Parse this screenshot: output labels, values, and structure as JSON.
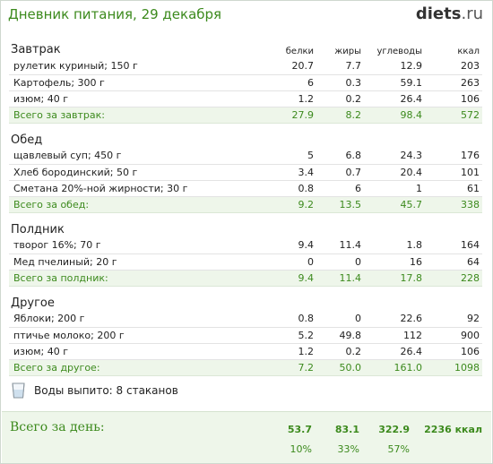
{
  "header": {
    "title": "Дневник питания, 29 декабря",
    "brand": "diets",
    "brand_tld": ".ru"
  },
  "columns": {
    "protein": "белки",
    "fat": "жиры",
    "carbs": "углеводы",
    "kcal": "ккал"
  },
  "meals": [
    {
      "name": "Завтрак",
      "items": [
        {
          "name": "рулетик куриный; 150 г",
          "protein": "20.7",
          "fat": "7.7",
          "carbs": "12.9",
          "kcal": "203"
        },
        {
          "name": "Картофель; 300 г",
          "protein": "6",
          "fat": "0.3",
          "carbs": "59.1",
          "kcal": "263"
        },
        {
          "name": "изюм; 40 г",
          "protein": "1.2",
          "fat": "0.2",
          "carbs": "26.4",
          "kcal": "106"
        }
      ],
      "total": {
        "label": "Всего за завтрак:",
        "protein": "27.9",
        "fat": "8.2",
        "carbs": "98.4",
        "kcal": "572"
      }
    },
    {
      "name": "Обед",
      "items": [
        {
          "name": "щавлевый суп; 450 г",
          "protein": "5",
          "fat": "6.8",
          "carbs": "24.3",
          "kcal": "176"
        },
        {
          "name": "Хлеб бородинский; 50 г",
          "protein": "3.4",
          "fat": "0.7",
          "carbs": "20.4",
          "kcal": "101"
        },
        {
          "name": "Сметана 20%-ной жирности; 30 г",
          "protein": "0.8",
          "fat": "6",
          "carbs": "1",
          "kcal": "61"
        }
      ],
      "total": {
        "label": "Всего за обед:",
        "protein": "9.2",
        "fat": "13.5",
        "carbs": "45.7",
        "kcal": "338"
      }
    },
    {
      "name": "Полдник",
      "items": [
        {
          "name": "творог 16%; 70 г",
          "protein": "9.4",
          "fat": "11.4",
          "carbs": "1.8",
          "kcal": "164"
        },
        {
          "name": "Мед пчелиный; 20 г",
          "protein": "0",
          "fat": "0",
          "carbs": "16",
          "kcal": "64"
        }
      ],
      "total": {
        "label": "Всего за полдник:",
        "protein": "9.4",
        "fat": "11.4",
        "carbs": "17.8",
        "kcal": "228"
      }
    },
    {
      "name": "Другое",
      "items": [
        {
          "name": "Яблоки; 200 г",
          "protein": "0.8",
          "fat": "0",
          "carbs": "22.6",
          "kcal": "92"
        },
        {
          "name": "птичье молоко; 200 г",
          "protein": "5.2",
          "fat": "49.8",
          "carbs": "112",
          "kcal": "900"
        },
        {
          "name": "изюм; 40 г",
          "protein": "1.2",
          "fat": "0.2",
          "carbs": "26.4",
          "kcal": "106"
        }
      ],
      "total": {
        "label": "Всего за другое:",
        "protein": "7.2",
        "fat": "50.0",
        "carbs": "161.0",
        "kcal": "1098"
      }
    }
  ],
  "water": {
    "icon": "glass-icon",
    "text": "Воды выпито: 8 стаканов"
  },
  "day_total": {
    "label": "Всего за день:",
    "protein": "53.7",
    "fat": "83.1",
    "carbs": "322.9",
    "kcal": "2236 ккал",
    "protein_pct": "10%",
    "fat_pct": "33%",
    "carbs_pct": "57%"
  },
  "colors": {
    "accent_green": "#3c8a1d",
    "total_row_bg": "#eef6ea"
  }
}
